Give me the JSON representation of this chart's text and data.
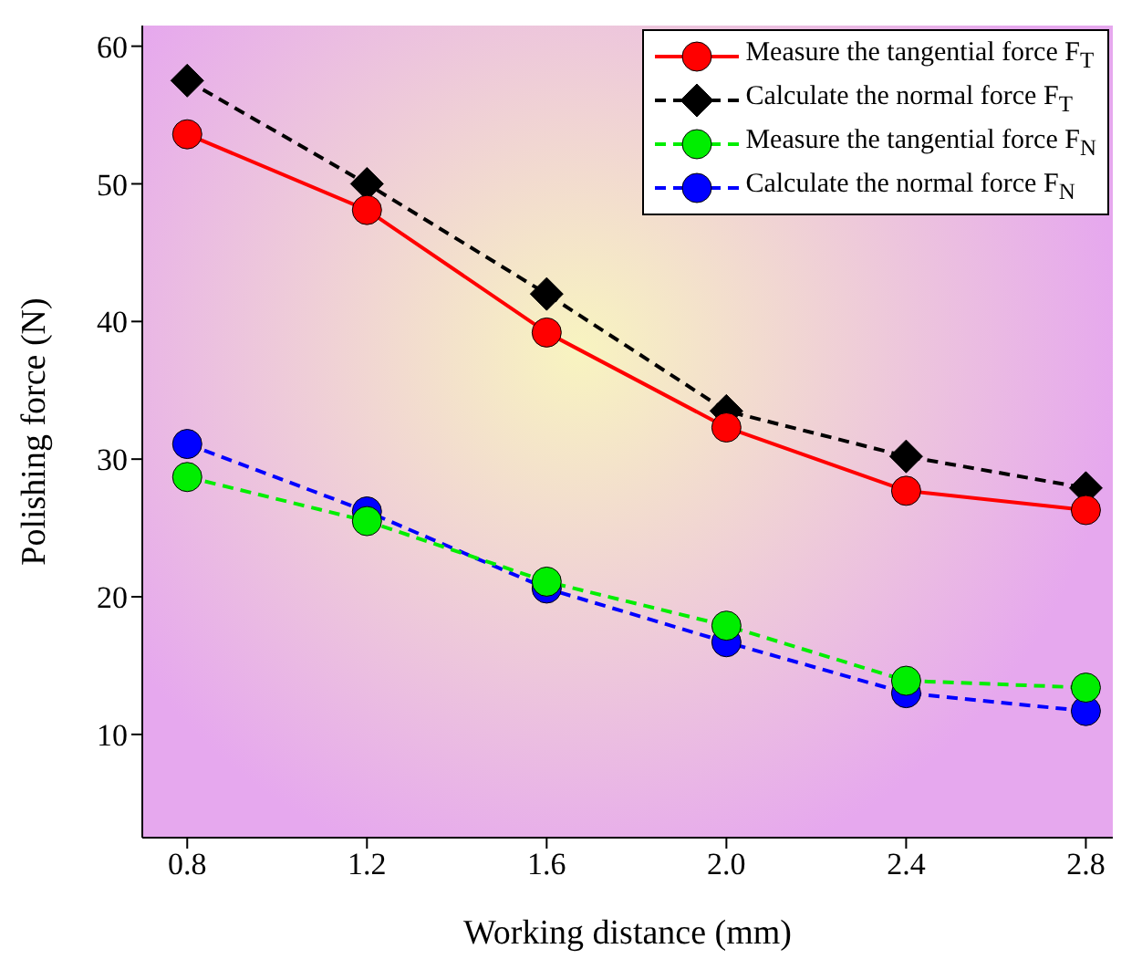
{
  "chart_data": {
    "type": "line",
    "xlabel": "Working distance (mm)",
    "ylabel": "Polishing force (N)",
    "x": [
      0.8,
      1.2,
      1.6,
      2.0,
      2.4,
      2.8
    ],
    "series": [
      {
        "name": "Measure the tangential force F$_{T}$",
        "color": "#ff0000",
        "values": [
          53.6,
          48.1,
          39.2,
          32.3,
          27.7,
          26.3
        ],
        "marker": "circle",
        "line_style": "solid"
      },
      {
        "name": "Calculate the normal force F$_{T}$",
        "color": "#000000",
        "values": [
          57.5,
          50.0,
          42.0,
          33.5,
          30.2,
          27.9
        ],
        "marker": "diamond",
        "line_style": "dashed"
      },
      {
        "name": "Measure the tangential force F$_{N}$",
        "color": "#00ee00",
        "values": [
          28.7,
          25.5,
          21.1,
          17.9,
          13.9,
          13.4
        ],
        "marker": "circle",
        "line_style": "dashed"
      },
      {
        "name": "Calculate the normal force F$_{N}$",
        "color": "#0000ff",
        "values": [
          31.1,
          26.2,
          20.6,
          16.7,
          13.0,
          11.7
        ],
        "marker": "circle",
        "line_style": "dashed"
      }
    ],
    "xlim": [
      0.7,
      2.86
    ],
    "ylim": [
      2.5,
      61.5
    ],
    "xticks": [
      0.8,
      1.2,
      1.6,
      {
        "value": 2.0,
        "label": "2.0"
      },
      2.4,
      2.8
    ],
    "yticks": [
      10,
      20,
      30,
      40,
      50,
      60
    ],
    "grid": false,
    "legend": "top right"
  }
}
